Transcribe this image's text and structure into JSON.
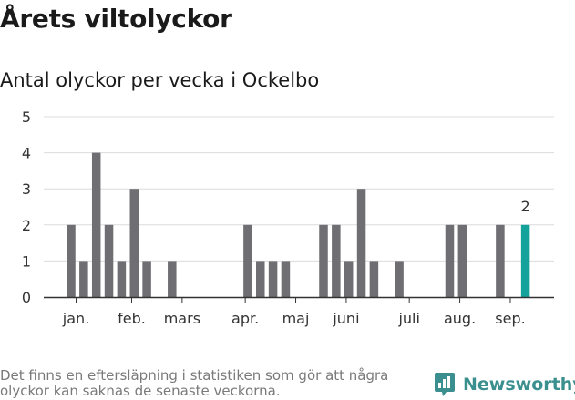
{
  "title": "Årets viltolyckor",
  "subtitle": "Antal olyckor per vecka i Ockelbo",
  "footnote": "Det finns en eftersläpning i statistiken som gör att några olyckor kan saknas de senaste veckorna.",
  "brand": {
    "name": "Newsworthy",
    "icon": "newsworthy-logo-icon",
    "color": "#3b8f8f"
  },
  "chart_data": {
    "type": "bar",
    "title": "Antal olyckor per vecka i Ockelbo",
    "ylim": [
      0,
      5
    ],
    "yticks": [
      0,
      1,
      2,
      3,
      4,
      5
    ],
    "grid": true,
    "weeks": [
      1,
      2,
      3,
      4,
      5,
      6,
      7,
      8,
      9,
      10,
      11,
      12,
      13,
      14,
      15,
      16,
      17,
      18,
      19,
      20,
      21,
      22,
      23,
      24,
      25,
      26,
      27,
      28,
      29,
      30,
      31,
      32,
      33,
      34,
      35,
      36,
      37,
      38
    ],
    "values": [
      2,
      1,
      4,
      2,
      1,
      3,
      1,
      0,
      1,
      0,
      0,
      0,
      0,
      0,
      2,
      1,
      1,
      1,
      0,
      0,
      2,
      2,
      1,
      3,
      1,
      0,
      1,
      0,
      0,
      0,
      2,
      2,
      0,
      0,
      2,
      0,
      2,
      null
    ],
    "highlight_index": 36,
    "highlight_label": "2",
    "month_labels": [
      {
        "label": "jan.",
        "week": 1.4
      },
      {
        "label": "feb.",
        "week": 5.8
      },
      {
        "label": "mars",
        "week": 9.8
      },
      {
        "label": "apr.",
        "week": 14.8
      },
      {
        "label": "maj",
        "week": 18.8
      },
      {
        "label": "juni",
        "week": 22.8
      },
      {
        "label": "juli",
        "week": 27.8
      },
      {
        "label": "aug.",
        "week": 31.8
      },
      {
        "label": "sep.",
        "week": 35.8
      }
    ],
    "colors": {
      "bar": "#6e6e73",
      "highlight": "#14a39a",
      "grid": "#dcdcdc",
      "axis": "#333333"
    }
  }
}
